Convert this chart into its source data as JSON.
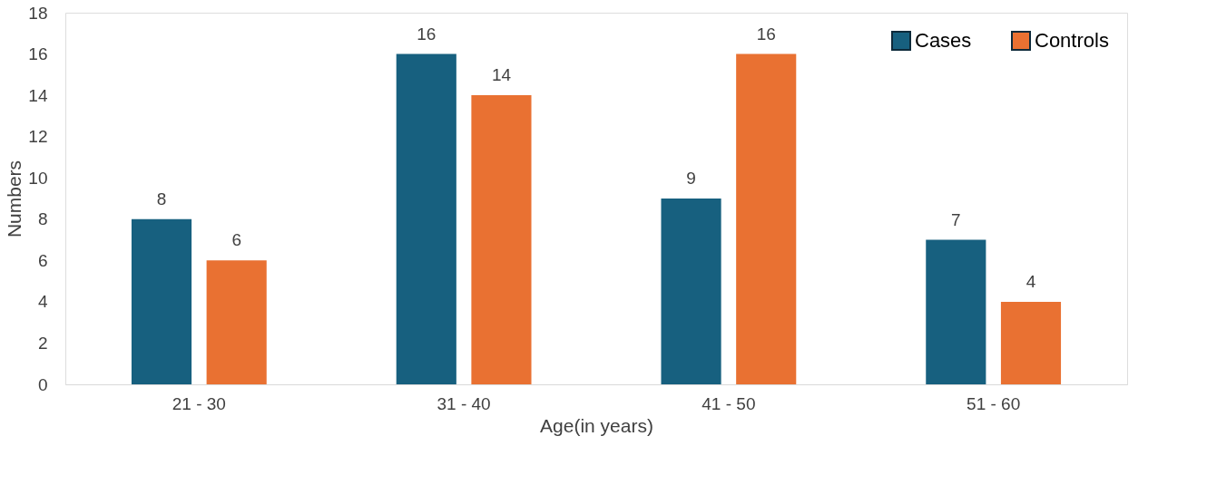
{
  "chart_data": {
    "type": "bar",
    "xlabel": "Age(in years)",
    "ylabel": "Numbers",
    "categories": [
      "21 - 30",
      "31 - 40",
      "41 - 50",
      "51 - 60"
    ],
    "series": [
      {
        "name": "Cases",
        "color": "#17607f",
        "values": [
          8,
          16,
          9,
          7
        ]
      },
      {
        "name": "Controls",
        "color": "#e97132",
        "values": [
          6,
          14,
          16,
          4
        ]
      }
    ],
    "ylim": [
      0,
      18
    ],
    "yticks": [
      0,
      2,
      4,
      6,
      8,
      10,
      12,
      14,
      16,
      18
    ],
    "grid": false,
    "legend": "top right",
    "data_labels": true
  }
}
